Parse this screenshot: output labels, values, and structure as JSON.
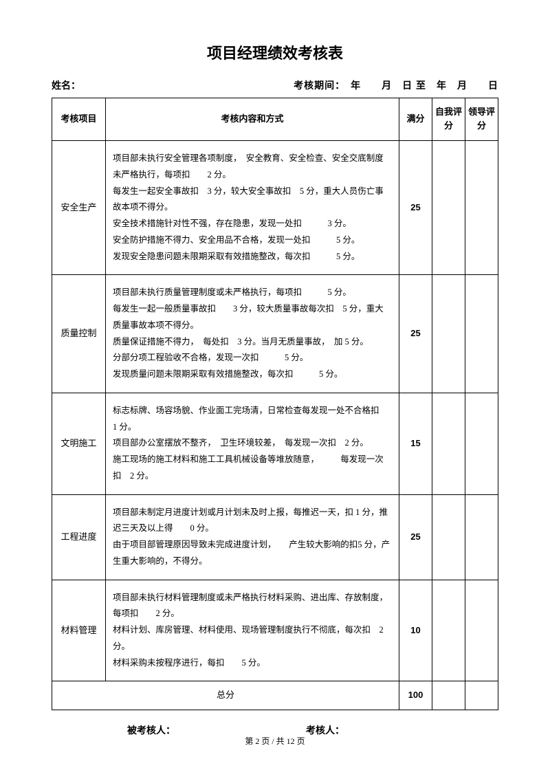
{
  "title": "项目经理绩效考核表",
  "header": {
    "name_label": "姓名：",
    "period_label": "考核期间：　年　　月　日 至　年　月　　日"
  },
  "columns": {
    "item": "考核项目",
    "content": "考核内容和方式",
    "full_score": "满分",
    "self_score": "自我评分",
    "leader_score": "领导评分"
  },
  "rows": [
    {
      "item": "安全生产",
      "content": "项目部未执行安全管理各项制度，　安全教育、安全检查、安全交底制度未严格执行，每项扣　　2 分。\n每发生一起安全事故扣　3 分，较大安全事故扣　5 分，重大人员伤亡事故本项不得分。\n安全技术措施针对性不强，存在隐患，发现一处扣　　　3 分。\n安全防护措施不得力、安全用品不合格，发现一处扣　　　5 分。\n发现安全隐患问题未限期采取有效措施整改，每次扣　　　5 分。",
      "score": "25"
    },
    {
      "item": "质量控制",
      "content": "项目部未执行质量管理制度或未严格执行，每项扣　　　5 分。\n每发生一起一般质量事故扣　　3 分，较大质量事故每次扣　5 分，重大质量事故本项不得分。\n质量保证措施不得力，　每处扣　3 分。当月无质量事故，　加 5 分。\n分部分项工程验收不合格，发现一次扣　　　5 分。\n发现质量问题未限期采取有效措施整改，每次扣　　　5 分。",
      "score": "25"
    },
    {
      "item": "文明施工",
      "content": "标志标牌、场容场貌、作业面工完场清，日常检查每发现一处不合格扣　1 分。\n项目部办公室摆放不整齐，　卫生环境较差，　每发现一次扣　2 分。\n施工现场的施工材料和施工工具机械设备等堆放随意，　　　每发现一次扣　2 分。",
      "score": "15"
    },
    {
      "item": "工程进度",
      "content": "项目部未制定月进度计划或月计划未及时上报，每推迟一天，扣 1 分，推迟三天及以上得　　0 分。\n由于项目部管理原因导致未完成进度计划，　　产生较大影响的扣5 分，产生重大影响的，不得分。",
      "score": "25"
    },
    {
      "item": "材料管理",
      "content": "项目部未执行材料管理制度或未严格执行材料采购、进出库、存放制度，每项扣　　2 分。\n材料计划、库房管理、材料使用、现场管理制度执行不彻底，每次扣　2 分。\n材料采购未按程序进行，每扣　　5 分。",
      "score": "10"
    }
  ],
  "total": {
    "label": "总分",
    "score": "100"
  },
  "footer": {
    "assessed": "被考核人：",
    "assessor": "考核人："
  },
  "page_footer": "第 2 页 / 共 12 页"
}
